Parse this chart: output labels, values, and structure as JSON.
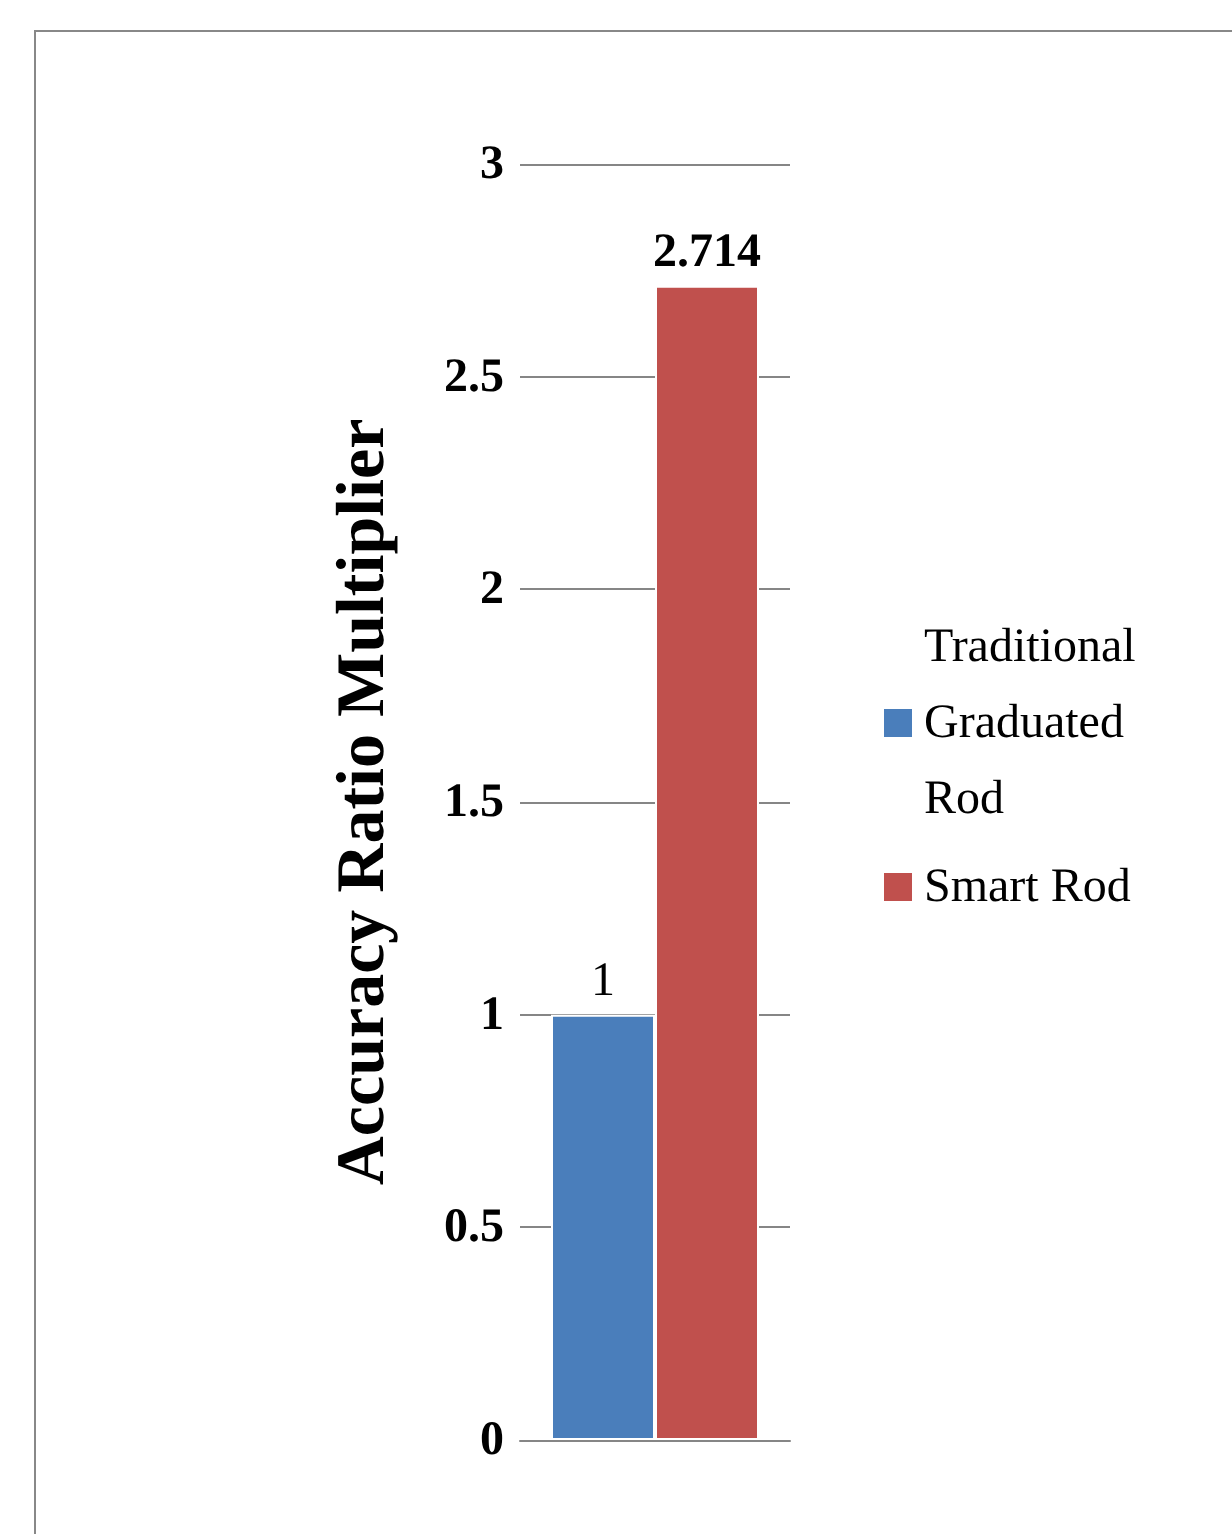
{
  "chart_data": {
    "type": "bar",
    "ylabel": "Accuracy Ratio Multiplier",
    "categories": [
      null
    ],
    "series": [
      {
        "name": "Traditional Graduated Rod",
        "color": "#4a7ebb",
        "values": [
          1
        ]
      },
      {
        "name": "Smart Rod",
        "color": "#c0504d",
        "values": [
          2.714
        ]
      }
    ],
    "ylim": [
      0,
      3
    ],
    "yticks": [
      0,
      0.5,
      1,
      1.5,
      2,
      2.5,
      3
    ],
    "grid": "y",
    "legend": "right",
    "data_labels": true
  }
}
